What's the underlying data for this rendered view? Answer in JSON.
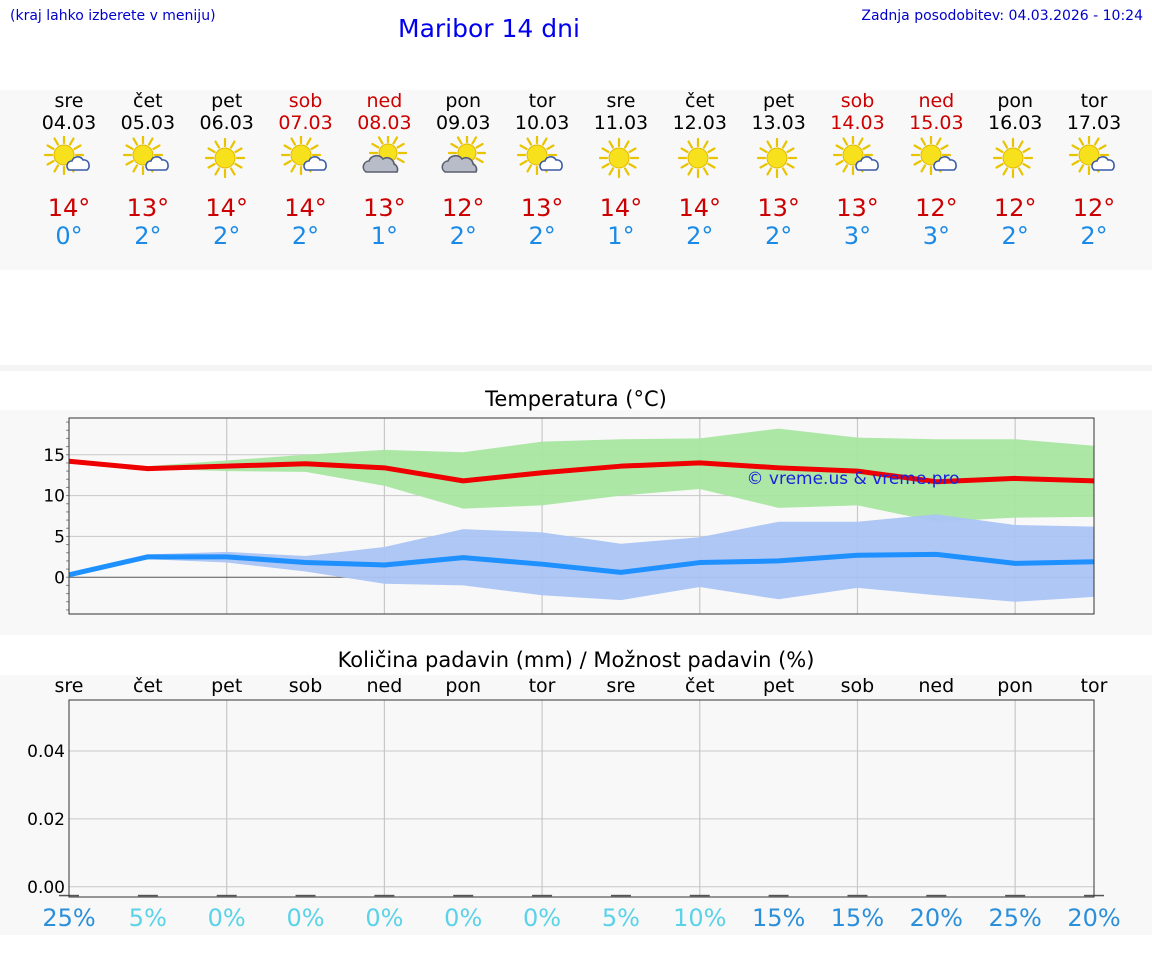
{
  "header": {
    "hint": "(kraj lahko izberete v meniju)",
    "title": "Maribor 14 dni",
    "updated": "Zadnja posodobitev: 04.03.2026 - 10:24",
    "watermark": "© vreme.us & vreme.pro"
  },
  "days": [
    {
      "name": "sre",
      "date": "04.03",
      "icon": "sun-cloud-icon",
      "tmax": "14°",
      "tmin": "0°",
      "weekend": false
    },
    {
      "name": "čet",
      "date": "05.03",
      "icon": "sun-cloud-icon",
      "tmax": "13°",
      "tmin": "2°",
      "weekend": false
    },
    {
      "name": "pet",
      "date": "06.03",
      "icon": "sun-icon",
      "tmax": "14°",
      "tmin": "2°",
      "weekend": false
    },
    {
      "name": "sob",
      "date": "07.03",
      "icon": "sun-cloud-icon",
      "tmax": "14°",
      "tmin": "2°",
      "weekend": true
    },
    {
      "name": "ned",
      "date": "08.03",
      "icon": "cloud-sun-icon",
      "tmax": "13°",
      "tmin": "1°",
      "weekend": true
    },
    {
      "name": "pon",
      "date": "09.03",
      "icon": "cloud-sun-icon",
      "tmax": "12°",
      "tmin": "2°",
      "weekend": false
    },
    {
      "name": "tor",
      "date": "10.03",
      "icon": "sun-cloud-icon",
      "tmax": "13°",
      "tmin": "2°",
      "weekend": false
    },
    {
      "name": "sre",
      "date": "11.03",
      "icon": "sun-icon",
      "tmax": "14°",
      "tmin": "1°",
      "weekend": false
    },
    {
      "name": "čet",
      "date": "12.03",
      "icon": "sun-icon",
      "tmax": "14°",
      "tmin": "2°",
      "weekend": false
    },
    {
      "name": "pet",
      "date": "13.03",
      "icon": "sun-icon",
      "tmax": "13°",
      "tmin": "2°",
      "weekend": false
    },
    {
      "name": "sob",
      "date": "14.03",
      "icon": "sun-cloud-icon",
      "tmax": "13°",
      "tmin": "3°",
      "weekend": true
    },
    {
      "name": "ned",
      "date": "15.03",
      "icon": "sun-cloud-icon",
      "tmax": "12°",
      "tmin": "3°",
      "weekend": true
    },
    {
      "name": "pon",
      "date": "16.03",
      "icon": "sun-icon",
      "tmax": "12°",
      "tmin": "2°",
      "weekend": false
    },
    {
      "name": "tor",
      "date": "17.03",
      "icon": "sun-cloud-icon",
      "tmax": "12°",
      "tmin": "2°",
      "weekend": false
    }
  ],
  "colors": {
    "max_line": "#ee0000",
    "max_band": "#a8e6a0",
    "min_line": "#1e90ff",
    "min_band": "#aac4f4",
    "pct_high": "#2b8fd9",
    "pct_low": "#5ad2e8"
  },
  "chart_data": [
    {
      "type": "line",
      "title": "Temperatura (°C)",
      "x": [
        "sre",
        "čet",
        "pet",
        "sob",
        "ned",
        "pon",
        "tor",
        "sre",
        "čet",
        "pet",
        "sob",
        "ned",
        "pon",
        "tor"
      ],
      "ylim": [
        -4.5,
        19.5
      ],
      "yticks": [
        0,
        5,
        10,
        15
      ],
      "series": [
        {
          "name": "max",
          "values": [
            14.2,
            13.3,
            13.6,
            13.9,
            13.4,
            11.8,
            12.8,
            13.6,
            14.0,
            13.4,
            13.0,
            11.7,
            12.1,
            11.8
          ],
          "band_low": [
            14.2,
            13.3,
            13.0,
            12.9,
            11.2,
            8.4,
            8.8,
            10.0,
            10.8,
            8.5,
            8.8,
            6.8,
            7.3,
            7.4
          ],
          "band_high": [
            14.2,
            13.6,
            14.3,
            15.0,
            15.6,
            15.3,
            16.6,
            16.9,
            17.0,
            18.2,
            17.1,
            16.9,
            16.9,
            16.1
          ]
        },
        {
          "name": "min",
          "values": [
            0.3,
            2.5,
            2.5,
            1.8,
            1.5,
            2.4,
            1.6,
            0.6,
            1.8,
            2.0,
            2.7,
            2.8,
            1.7,
            1.9
          ],
          "band_low": [
            0.3,
            2.2,
            1.8,
            0.7,
            -0.8,
            -1.0,
            -2.2,
            -2.8,
            -1.2,
            -2.7,
            -1.3,
            -2.2,
            -3.0,
            -2.4
          ],
          "band_high": [
            0.5,
            2.8,
            3.1,
            2.6,
            3.7,
            5.9,
            5.5,
            4.1,
            4.9,
            6.8,
            6.8,
            7.7,
            6.4,
            6.2
          ]
        }
      ]
    },
    {
      "type": "bar",
      "title": "Količina padavin (mm) / Možnost padavin (%)",
      "categories": [
        "sre",
        "čet",
        "pet",
        "sob",
        "ned",
        "pon",
        "tor",
        "sre",
        "čet",
        "pet",
        "sob",
        "ned",
        "pon",
        "tor"
      ],
      "values": [
        0,
        0,
        0,
        0,
        0,
        0,
        0,
        0,
        0,
        0,
        0,
        0,
        0,
        0
      ],
      "ylim": [
        -0.003,
        0.055
      ],
      "yticks": [
        "0.00",
        "0.02",
        "0.04"
      ],
      "probability": [
        "25%",
        "5%",
        "0%",
        "0%",
        "0%",
        "0%",
        "0%",
        "5%",
        "10%",
        "15%",
        "15%",
        "20%",
        "25%",
        "20%"
      ],
      "probability_values": [
        25,
        5,
        0,
        0,
        0,
        0,
        0,
        5,
        10,
        15,
        15,
        20,
        25,
        20
      ]
    }
  ]
}
